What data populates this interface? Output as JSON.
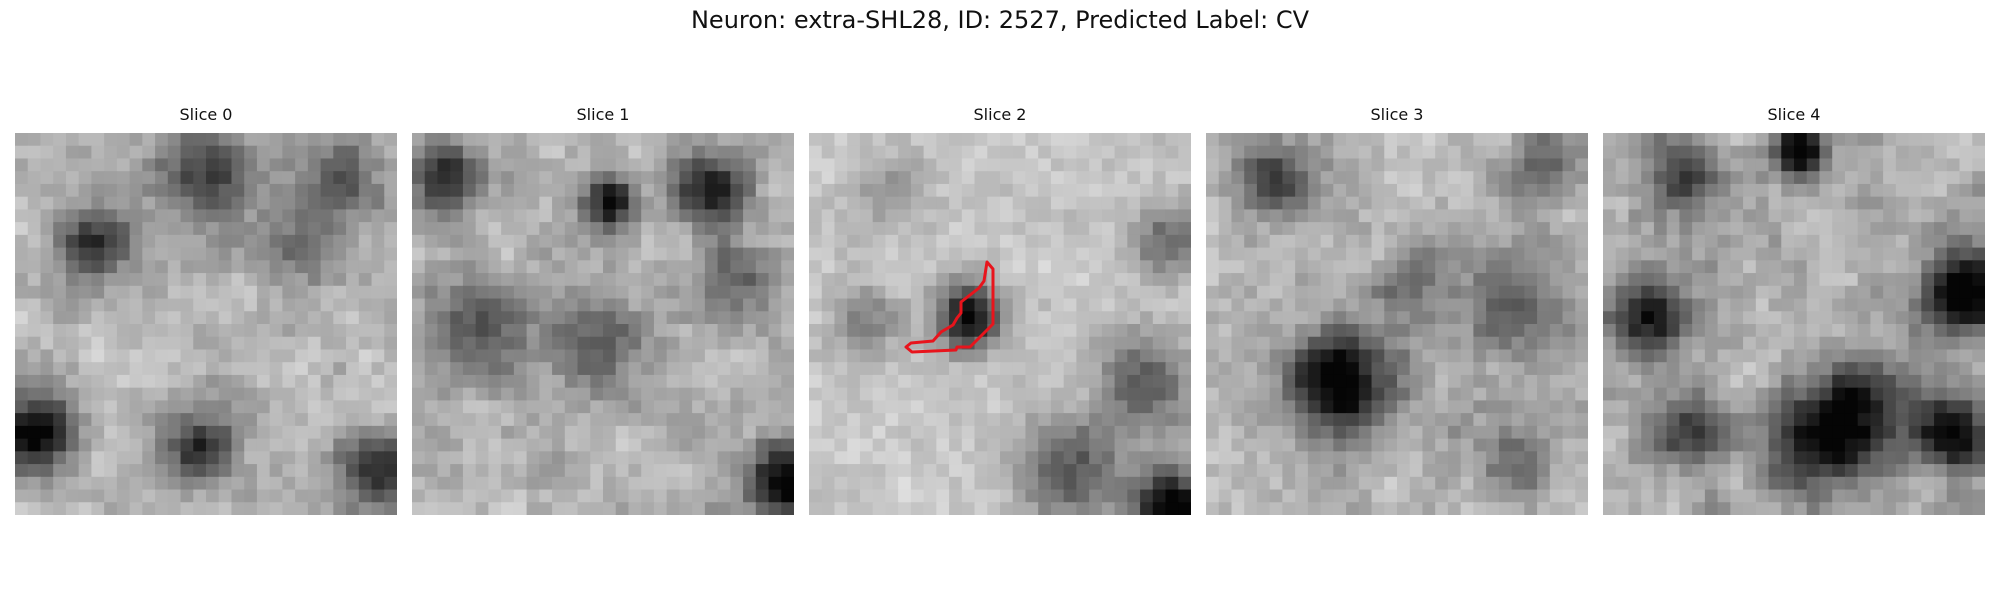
{
  "figure": {
    "title": "Neuron: extra-SHL28, ID: 2527, Predicted Label: CV"
  },
  "slices": [
    {
      "title": "Slice 0",
      "roi": false
    },
    {
      "title": "Slice 1",
      "roi": false
    },
    {
      "title": "Slice 2",
      "roi": true
    },
    {
      "title": "Slice 3",
      "roi": false
    },
    {
      "title": "Slice 4",
      "roi": false
    }
  ],
  "colors": {
    "roi_outline": "#e8141c",
    "background": "#ffffff"
  }
}
